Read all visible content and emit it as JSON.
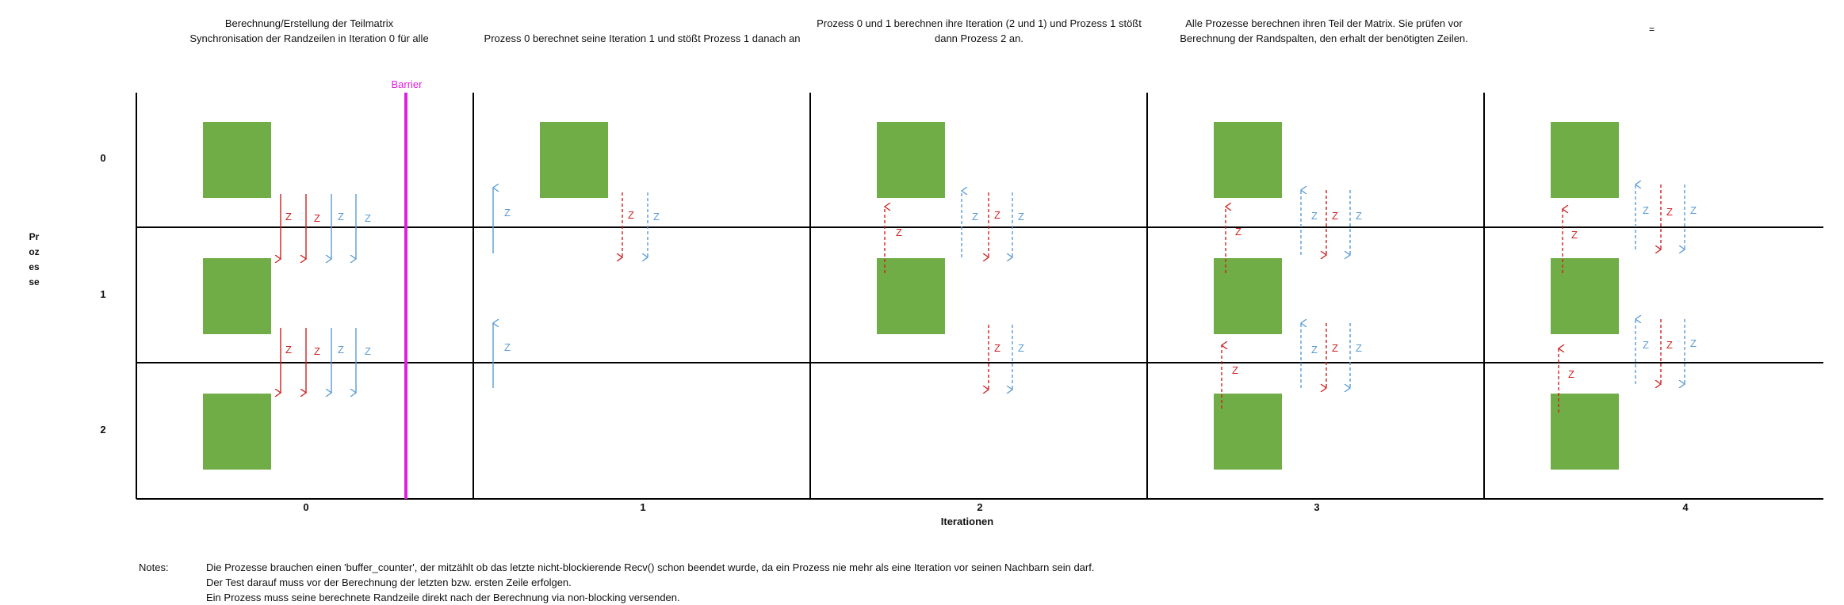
{
  "descriptions": [
    {
      "lines": [
        "Berechnung/Erstellung der Teilmatrix",
        "Synchronisation der Randzeilen in Iteration 0 für alle"
      ]
    },
    {
      "lines": [
        "",
        "Prozess 0 berechnet seine Iteration 1 und stößt Prozess 1 danach an"
      ]
    },
    {
      "lines": [
        "Prozess 0 und 1 berechnen ihre Iteration (2 und 1) und Prozess 1 stößt",
        "dann Prozess 2 an."
      ]
    },
    {
      "lines": [
        "Alle Prozesse berechnen ihren Teil der Matrix. Sie prüfen vor",
        "Berechnung der Randspalten, den erhalt der benötigten Zeilen."
      ]
    }
  ],
  "corner_mark": "=",
  "y_axis_title": "Prozesse",
  "processes": [
    "0",
    "1",
    "2"
  ],
  "iterations": [
    "0",
    "1",
    "2",
    "3",
    "4"
  ],
  "x_axis_title": "Iterationen",
  "barrier_label": "Barrier",
  "arrow_label": "Z",
  "colors": {
    "block": "#70ad47",
    "red_arrow": "#d02020",
    "blue_arrow": "#5b9bd5",
    "barrier": "#e020e0",
    "grid": "#000000"
  },
  "notes_label": "Notes:",
  "notes": [
    "Die Prozesse brauchen einen 'buffer_counter', der mitzählt ob das letzte nicht-blockierende Recv() schon beendet wurde, da ein Prozess nie mehr als eine Iteration vor seinen Nachbarn sein darf.",
    "Der Test darauf muss vor der Berechnung der letzten bzw. ersten Zeile erfolgen.",
    "Ein Prozess muss seine berechnete Randzeile direkt nach der Berechnung via non-blocking versenden."
  ]
}
